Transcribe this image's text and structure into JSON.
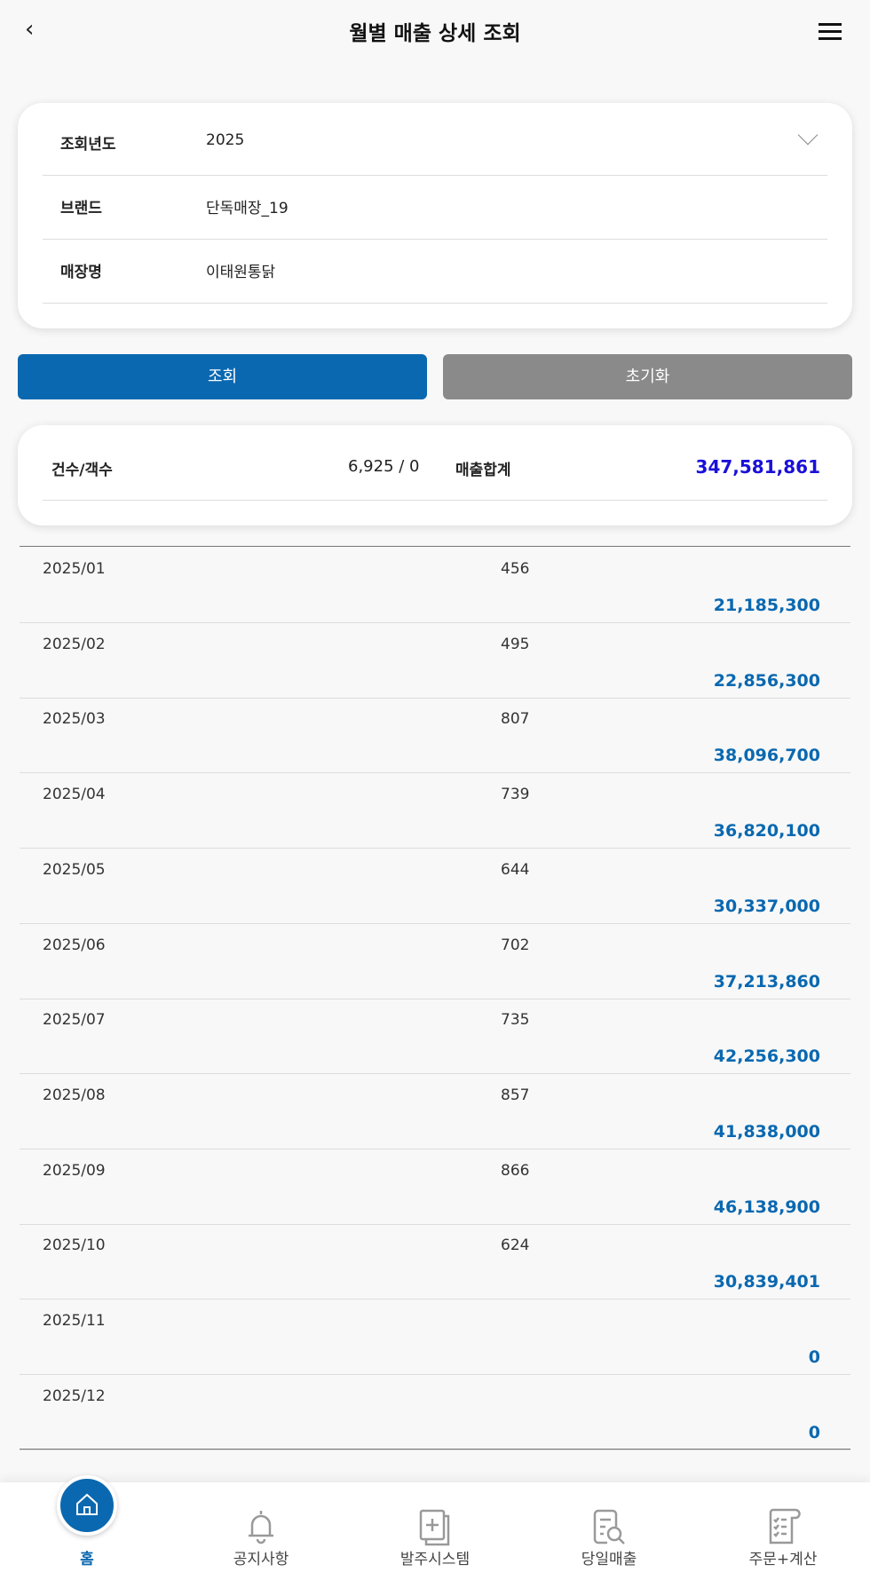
{
  "header": {
    "title": "월별 매출 상세 조회"
  },
  "filters": [
    {
      "label": "조회년도",
      "value": "2025"
    },
    {
      "label": "브랜드",
      "value": "단독매장_19"
    },
    {
      "label": "매장명",
      "value": "이태원통닭"
    }
  ],
  "buttons": {
    "search": "조회",
    "reset": "초기화"
  },
  "summary": {
    "count_label": "건수/객수",
    "count_value": "6,925 / 0",
    "sales_label": "매출합계",
    "sales_value": "347,581,861"
  },
  "rows": [
    {
      "month": "2025/01",
      "count": "456",
      "amount": "21,185,300"
    },
    {
      "month": "2025/02",
      "count": "495",
      "amount": "22,856,300"
    },
    {
      "month": "2025/03",
      "count": "807",
      "amount": "38,096,700"
    },
    {
      "month": "2025/04",
      "count": "739",
      "amount": "36,820,100"
    },
    {
      "month": "2025/05",
      "count": "644",
      "amount": "30,337,000"
    },
    {
      "month": "2025/06",
      "count": "702",
      "amount": "37,213,860"
    },
    {
      "month": "2025/07",
      "count": "735",
      "amount": "42,256,300"
    },
    {
      "month": "2025/08",
      "count": "857",
      "amount": "41,838,000"
    },
    {
      "month": "2025/09",
      "count": "866",
      "amount": "46,138,900"
    },
    {
      "month": "2025/10",
      "count": "624",
      "amount": "30,839,401"
    },
    {
      "month": "2025/11",
      "count": "",
      "amount": "0"
    },
    {
      "month": "2025/12",
      "count": "",
      "amount": "0"
    }
  ],
  "nav": [
    {
      "label": "홈",
      "icon": "home-icon"
    },
    {
      "label": "공지사항",
      "icon": "bell-icon"
    },
    {
      "label": "발주시스템",
      "icon": "order-icon"
    },
    {
      "label": "당일매출",
      "icon": "search-document-icon"
    },
    {
      "label": "주문+계산",
      "icon": "checklist-icon"
    }
  ],
  "colors": {
    "primary": "#0a68b0",
    "reset": "#8a8a8a",
    "total": "#1a10d8"
  }
}
